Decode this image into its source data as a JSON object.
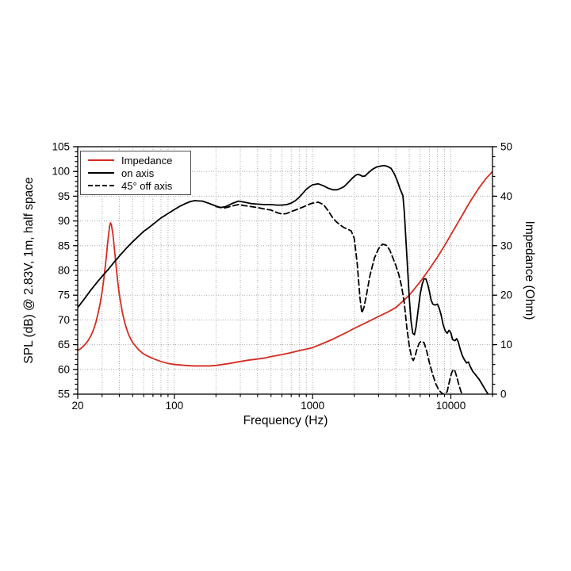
{
  "figure": {
    "background": "#ffffff",
    "grid_color": "#ababab",
    "spine_color": "#000000"
  },
  "axes": {
    "x_label": "Frequency (Hz)",
    "y_left_label": "SPL (dB) @ 2.83V, 1m, half space",
    "y_right_label": "Impedance (Ohm)",
    "x_tick_labels": [
      "20",
      "100",
      "1000",
      "10000"
    ],
    "y_left_tick_labels": [
      "55",
      "60",
      "65",
      "70",
      "75",
      "80",
      "85",
      "90",
      "95",
      "100",
      "105"
    ],
    "y_right_tick_labels": [
      "0",
      "10",
      "20",
      "30",
      "40",
      "50"
    ]
  },
  "legend": {
    "items": [
      {
        "label": "Impedance",
        "line": "solid",
        "color": "#d62b20"
      },
      {
        "label": "on axis",
        "line": "solid",
        "color": "#000000"
      },
      {
        "label": "45° off axis",
        "line": "dashed",
        "color": "#000000"
      }
    ]
  },
  "chart_data": {
    "type": "line",
    "title": "",
    "xlabel": "Frequency (Hz)",
    "ylabel_left": "SPL (dB) @ 2.83V, 1m, half space",
    "ylabel_right": "Impedance (Ohm)",
    "x_scale": "log",
    "xlim": [
      20,
      20000
    ],
    "ylim_left": [
      55,
      105
    ],
    "ylim_right": [
      0,
      50
    ],
    "grid": true,
    "legend_position": "upper left",
    "x_major_ticks": [
      20,
      100,
      1000,
      10000
    ],
    "x_minor_ticks": [
      30,
      40,
      50,
      60,
      70,
      80,
      90,
      200,
      300,
      400,
      500,
      600,
      700,
      800,
      900,
      2000,
      3000,
      4000,
      5000,
      6000,
      7000,
      8000,
      9000,
      20000
    ],
    "y_left_major_ticks": [
      55,
      60,
      65,
      70,
      75,
      80,
      85,
      90,
      95,
      100,
      105
    ],
    "y_left_minor_step": 1,
    "y_right_major_ticks": [
      0,
      10,
      20,
      30,
      40,
      50
    ],
    "y_right_minor_step": 2,
    "series": [
      {
        "name": "Impedance",
        "axis": "right",
        "units": "Ohm",
        "color": "#d62b20",
        "style": "solid",
        "points": [
          [
            20,
            8.8
          ],
          [
            21,
            9.2
          ],
          [
            22,
            9.7
          ],
          [
            23,
            10.3
          ],
          [
            24,
            11.0
          ],
          [
            25,
            11.9
          ],
          [
            26,
            13.0
          ],
          [
            27,
            14.4
          ],
          [
            28,
            16.2
          ],
          [
            29,
            18.2
          ],
          [
            30,
            20.6
          ],
          [
            31,
            23.6
          ],
          [
            32,
            27.0
          ],
          [
            33,
            30.8
          ],
          [
            34,
            33.9
          ],
          [
            34.5,
            34.6
          ],
          [
            35,
            34.3
          ],
          [
            36,
            32.2
          ],
          [
            37,
            28.9
          ],
          [
            38,
            25.6
          ],
          [
            39,
            22.6
          ],
          [
            40,
            20.1
          ],
          [
            42,
            16.6
          ],
          [
            44,
            14.2
          ],
          [
            46,
            12.5
          ],
          [
            48,
            11.3
          ],
          [
            50,
            10.4
          ],
          [
            55,
            9.0
          ],
          [
            60,
            8.1
          ],
          [
            65,
            7.6
          ],
          [
            70,
            7.2
          ],
          [
            80,
            6.6
          ],
          [
            90,
            6.2
          ],
          [
            100,
            6.0
          ],
          [
            110,
            5.9
          ],
          [
            120,
            5.8
          ],
          [
            140,
            5.7
          ],
          [
            160,
            5.7
          ],
          [
            180,
            5.7
          ],
          [
            200,
            5.8
          ],
          [
            250,
            6.2
          ],
          [
            300,
            6.6
          ],
          [
            350,
            6.9
          ],
          [
            400,
            7.1
          ],
          [
            450,
            7.3
          ],
          [
            500,
            7.6
          ],
          [
            600,
            8.0
          ],
          [
            700,
            8.4
          ],
          [
            800,
            8.8
          ],
          [
            900,
            9.1
          ],
          [
            1000,
            9.4
          ],
          [
            1200,
            10.3
          ],
          [
            1400,
            11.1
          ],
          [
            1600,
            11.9
          ],
          [
            1800,
            12.6
          ],
          [
            2000,
            13.3
          ],
          [
            2500,
            14.6
          ],
          [
            3000,
            15.7
          ],
          [
            3500,
            16.6
          ],
          [
            4000,
            17.5
          ],
          [
            4500,
            18.8
          ],
          [
            5000,
            20.0
          ],
          [
            5500,
            21.4
          ],
          [
            6000,
            22.7
          ],
          [
            7000,
            25.3
          ],
          [
            8000,
            27.7
          ],
          [
            9000,
            30.0
          ],
          [
            10000,
            32.2
          ],
          [
            11000,
            34.2
          ],
          [
            12000,
            36.0
          ],
          [
            13000,
            37.7
          ],
          [
            14000,
            39.2
          ],
          [
            15000,
            40.5
          ],
          [
            16000,
            41.7
          ],
          [
            17000,
            42.7
          ],
          [
            18000,
            43.6
          ],
          [
            19000,
            44.3
          ],
          [
            20000,
            45.0
          ]
        ]
      },
      {
        "name": "on axis",
        "axis": "left",
        "units": "dB",
        "color": "#000000",
        "style": "solid",
        "points": [
          [
            20,
            72.5
          ],
          [
            22,
            74.0
          ],
          [
            25,
            76.1
          ],
          [
            28,
            77.8
          ],
          [
            30,
            78.8
          ],
          [
            33,
            80.1
          ],
          [
            36,
            81.4
          ],
          [
            40,
            82.9
          ],
          [
            45,
            84.5
          ],
          [
            50,
            85.8
          ],
          [
            55,
            86.9
          ],
          [
            60,
            87.9
          ],
          [
            65,
            88.6
          ],
          [
            70,
            89.3
          ],
          [
            80,
            90.6
          ],
          [
            90,
            91.5
          ],
          [
            100,
            92.3
          ],
          [
            110,
            93.0
          ],
          [
            120,
            93.5
          ],
          [
            130,
            93.9
          ],
          [
            140,
            94.1
          ],
          [
            160,
            94.0
          ],
          [
            180,
            93.5
          ],
          [
            200,
            93.0
          ],
          [
            215,
            92.7
          ],
          [
            235,
            92.9
          ],
          [
            260,
            93.5
          ],
          [
            290,
            94.0
          ],
          [
            320,
            93.8
          ],
          [
            360,
            93.5
          ],
          [
            400,
            93.4
          ],
          [
            450,
            93.3
          ],
          [
            500,
            93.3
          ],
          [
            550,
            93.2
          ],
          [
            600,
            93.2
          ],
          [
            650,
            93.3
          ],
          [
            700,
            93.6
          ],
          [
            750,
            94.1
          ],
          [
            800,
            94.8
          ],
          [
            850,
            95.6
          ],
          [
            900,
            96.4
          ],
          [
            950,
            96.9
          ],
          [
            1000,
            97.3
          ],
          [
            1100,
            97.5
          ],
          [
            1200,
            97.1
          ],
          [
            1300,
            96.6
          ],
          [
            1400,
            96.3
          ],
          [
            1500,
            96.3
          ],
          [
            1600,
            96.6
          ],
          [
            1700,
            97.0
          ],
          [
            1800,
            97.7
          ],
          [
            1900,
            98.4
          ],
          [
            2000,
            99.0
          ],
          [
            2100,
            99.4
          ],
          [
            2200,
            99.3
          ],
          [
            2300,
            99.0
          ],
          [
            2400,
            99.1
          ],
          [
            2500,
            99.6
          ],
          [
            2700,
            100.4
          ],
          [
            2900,
            100.9
          ],
          [
            3100,
            101.1
          ],
          [
            3300,
            101.2
          ],
          [
            3500,
            101.0
          ],
          [
            3700,
            100.6
          ],
          [
            3900,
            99.5
          ],
          [
            4100,
            98.1
          ],
          [
            4300,
            96.4
          ],
          [
            4500,
            95.1
          ],
          [
            4600,
            92.0
          ],
          [
            4700,
            87.5
          ],
          [
            4850,
            81.0
          ],
          [
            5000,
            74.5
          ],
          [
            5150,
            69.8
          ],
          [
            5300,
            67.3
          ],
          [
            5450,
            67.0
          ],
          [
            5600,
            68.6
          ],
          [
            5800,
            72.0
          ],
          [
            6000,
            75.2
          ],
          [
            6200,
            77.2
          ],
          [
            6400,
            78.3
          ],
          [
            6600,
            78.3
          ],
          [
            6800,
            77.2
          ],
          [
            7000,
            75.7
          ],
          [
            7200,
            74.0
          ],
          [
            7400,
            73.2
          ],
          [
            7700,
            73.0
          ],
          [
            8000,
            73.2
          ],
          [
            8200,
            72.5
          ],
          [
            8500,
            71.0
          ],
          [
            8800,
            69.0
          ],
          [
            9100,
            67.8
          ],
          [
            9400,
            67.3
          ],
          [
            9700,
            67.9
          ],
          [
            10000,
            67.4
          ],
          [
            10300,
            66.0
          ],
          [
            10700,
            65.8
          ],
          [
            11000,
            66.2
          ],
          [
            11300,
            65.6
          ],
          [
            11700,
            64.0
          ],
          [
            12100,
            62.8
          ],
          [
            12500,
            62.0
          ],
          [
            13000,
            61.3
          ],
          [
            13400,
            61.5
          ],
          [
            13800,
            60.6
          ],
          [
            14400,
            59.6
          ],
          [
            15000,
            59.0
          ],
          [
            16000,
            58.0
          ],
          [
            17000,
            56.8
          ],
          [
            18000,
            55.6
          ],
          [
            18600,
            55.0
          ]
        ]
      },
      {
        "name": "45° off axis",
        "axis": "left",
        "units": "dB",
        "color": "#000000",
        "style": "dashed",
        "points": [
          [
            200,
            92.9
          ],
          [
            230,
            92.6
          ],
          [
            260,
            93.0
          ],
          [
            290,
            93.3
          ],
          [
            320,
            93.1
          ],
          [
            360,
            92.9
          ],
          [
            400,
            92.7
          ],
          [
            450,
            92.4
          ],
          [
            500,
            92.2
          ],
          [
            550,
            91.7
          ],
          [
            600,
            91.4
          ],
          [
            650,
            91.5
          ],
          [
            700,
            91.9
          ],
          [
            750,
            92.2
          ],
          [
            800,
            92.5
          ],
          [
            850,
            92.8
          ],
          [
            900,
            93.1
          ],
          [
            950,
            93.4
          ],
          [
            1000,
            93.6
          ],
          [
            1100,
            93.8
          ],
          [
            1200,
            93.3
          ],
          [
            1300,
            92.0
          ],
          [
            1400,
            90.6
          ],
          [
            1500,
            89.7
          ],
          [
            1600,
            89.1
          ],
          [
            1700,
            88.6
          ],
          [
            1800,
            88.3
          ],
          [
            1900,
            88.0
          ],
          [
            2000,
            86.5
          ],
          [
            2100,
            81.5
          ],
          [
            2200,
            74.5
          ],
          [
            2270,
            71.4
          ],
          [
            2350,
            72.5
          ],
          [
            2450,
            75.0
          ],
          [
            2600,
            79.0
          ],
          [
            2800,
            82.5
          ],
          [
            3000,
            84.4
          ],
          [
            3200,
            85.3
          ],
          [
            3400,
            85.1
          ],
          [
            3600,
            84.2
          ],
          [
            3800,
            82.6
          ],
          [
            4000,
            81.0
          ],
          [
            4200,
            79.2
          ],
          [
            4400,
            76.8
          ],
          [
            4600,
            73.5
          ],
          [
            4800,
            68.5
          ],
          [
            5000,
            64.8
          ],
          [
            5200,
            62.4
          ],
          [
            5350,
            61.8
          ],
          [
            5500,
            62.6
          ],
          [
            5700,
            64.2
          ],
          [
            5900,
            65.3
          ],
          [
            6100,
            65.7
          ],
          [
            6400,
            65.4
          ],
          [
            6700,
            63.6
          ],
          [
            7000,
            61.3
          ],
          [
            7400,
            58.9
          ],
          [
            7800,
            57.0
          ],
          [
            8200,
            55.8
          ],
          [
            8600,
            55.2
          ],
          [
            9000,
            54.9
          ],
          [
            9400,
            55.5
          ],
          [
            9800,
            57.8
          ],
          [
            10100,
            59.2
          ],
          [
            10400,
            60.0
          ],
          [
            10700,
            59.7
          ],
          [
            11000,
            58.6
          ],
          [
            11400,
            57.0
          ],
          [
            11800,
            55.6
          ],
          [
            12100,
            54.9
          ]
        ]
      }
    ]
  }
}
